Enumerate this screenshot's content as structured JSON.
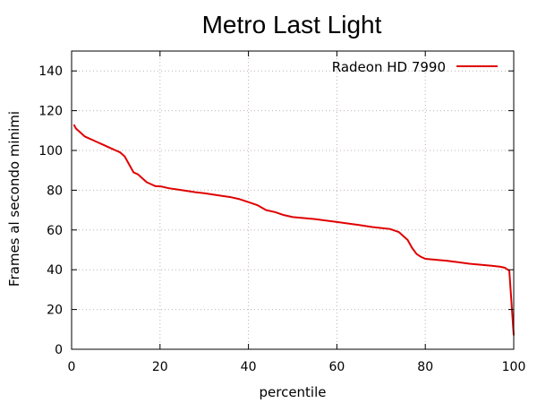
{
  "chart_data": {
    "type": "line",
    "title": "Metro Last Light",
    "xlabel": "percentile",
    "ylabel": "Frames al secondo minimi",
    "xlim": [
      0,
      100
    ],
    "ylim": [
      0,
      150
    ],
    "xticks": [
      0,
      20,
      40,
      60,
      80,
      100
    ],
    "yticks": [
      0,
      20,
      40,
      60,
      80,
      100,
      120,
      140
    ],
    "grid": true,
    "legend_position": "top-right",
    "series": [
      {
        "name": "Radeon HD 7990",
        "color": "#e00000",
        "x": [
          0.5,
          1,
          2,
          3,
          4,
          5,
          6,
          7,
          8,
          9,
          10,
          11,
          12,
          13,
          14,
          15,
          16,
          17,
          18,
          19,
          20,
          22,
          25,
          28,
          30,
          33,
          36,
          38,
          40,
          42,
          44,
          46,
          48,
          50,
          55,
          60,
          65,
          68,
          70,
          72,
          74,
          75,
          76,
          77,
          78,
          79,
          80,
          85,
          90,
          95,
          97,
          98,
          99,
          100
        ],
        "y": [
          113,
          111,
          109,
          107,
          106,
          105,
          104,
          103,
          102,
          101,
          100,
          99,
          97,
          93,
          89,
          88,
          86,
          84,
          83,
          82,
          82,
          81,
          80,
          79,
          78.5,
          77.5,
          76.5,
          75.5,
          74,
          72.5,
          70,
          69,
          67.5,
          66.5,
          65.5,
          64,
          62.5,
          61.5,
          61,
          60.5,
          59,
          57,
          55,
          51,
          48,
          46.5,
          45.5,
          44.5,
          43,
          42,
          41.5,
          41,
          39.5,
          7
        ]
      }
    ]
  }
}
